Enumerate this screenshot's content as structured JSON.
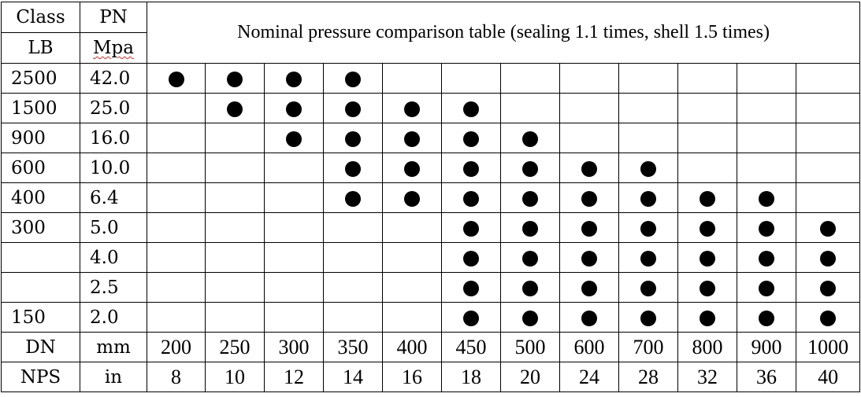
{
  "table": {
    "title": "Nominal pressure comparison table (sealing 1.1 times, shell 1.5 times)",
    "header": {
      "class_label": "Class",
      "pn_label": "PN",
      "lb_label": "LB",
      "mpa_label": "Mpa"
    },
    "rows": [
      {
        "lb": "2500",
        "mpa": "42.0",
        "marks": [
          true,
          true,
          true,
          true,
          false,
          false,
          false,
          false,
          false,
          false,
          false,
          false
        ]
      },
      {
        "lb": "1500",
        "mpa": "25.0",
        "marks": [
          false,
          true,
          true,
          true,
          true,
          true,
          false,
          false,
          false,
          false,
          false,
          false
        ]
      },
      {
        "lb": "900",
        "mpa": "16.0",
        "marks": [
          false,
          false,
          true,
          true,
          true,
          true,
          true,
          false,
          false,
          false,
          false,
          false
        ]
      },
      {
        "lb": "600",
        "mpa": "10.0",
        "marks": [
          false,
          false,
          false,
          true,
          true,
          true,
          true,
          true,
          true,
          false,
          false,
          false
        ]
      },
      {
        "lb": "400",
        "mpa": "6.4",
        "marks": [
          false,
          false,
          false,
          true,
          true,
          true,
          true,
          true,
          true,
          true,
          true,
          false
        ]
      },
      {
        "lb": "300",
        "mpa": "5.0",
        "marks": [
          false,
          false,
          false,
          false,
          false,
          true,
          true,
          true,
          true,
          true,
          true,
          true
        ]
      },
      {
        "lb": "",
        "mpa": "4.0",
        "marks": [
          false,
          false,
          false,
          false,
          false,
          true,
          true,
          true,
          true,
          true,
          true,
          true
        ]
      },
      {
        "lb": "",
        "mpa": "2.5",
        "marks": [
          false,
          false,
          false,
          false,
          false,
          true,
          true,
          true,
          true,
          true,
          true,
          true
        ]
      },
      {
        "lb": "150",
        "mpa": "2.0",
        "marks": [
          false,
          false,
          false,
          false,
          false,
          true,
          true,
          true,
          true,
          true,
          true,
          true
        ]
      }
    ],
    "dn_row": {
      "label": "DN",
      "unit": "mm",
      "values": [
        "200",
        "250",
        "300",
        "350",
        "400",
        "450",
        "500",
        "600",
        "700",
        "800",
        "900",
        "1000"
      ]
    },
    "nps_row": {
      "label": "NPS",
      "unit": "in",
      "values": [
        "8",
        "10",
        "12",
        "14",
        "16",
        "18",
        "20",
        "24",
        "28",
        "32",
        "36",
        "40"
      ]
    },
    "mark_icon": "filled-circle-icon"
  }
}
